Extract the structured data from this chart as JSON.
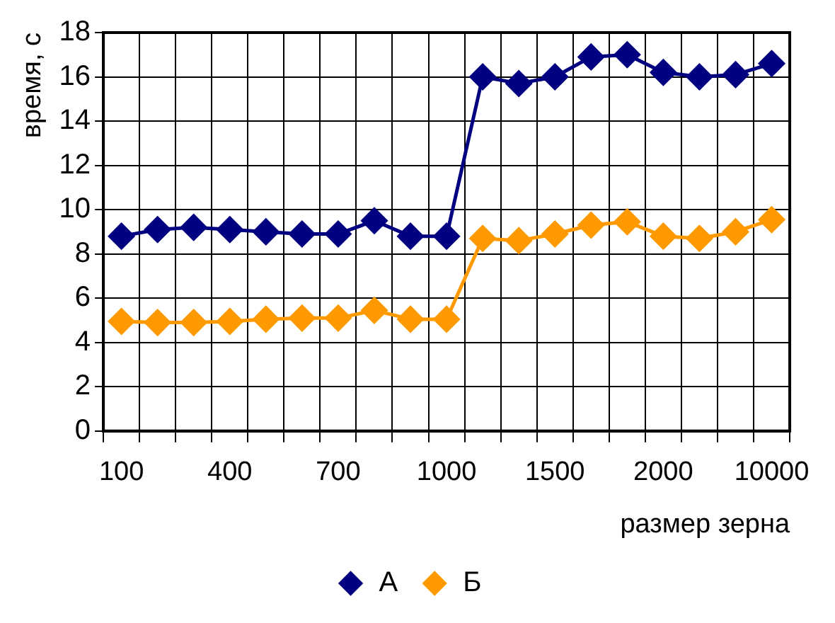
{
  "chart_data": {
    "type": "line",
    "xlabel": "размер зерна",
    "ylabel": "время, с",
    "categories": [
      "100",
      null,
      null,
      "400",
      null,
      null,
      "700",
      null,
      null,
      "1000",
      null,
      null,
      "1500",
      null,
      null,
      "2000",
      null,
      null,
      "10000"
    ],
    "series": [
      {
        "name": "А",
        "color": "#000080",
        "values": [
          8.8,
          9.1,
          9.2,
          9.1,
          9.0,
          8.9,
          8.9,
          9.5,
          8.8,
          8.8,
          16.0,
          15.7,
          16.0,
          16.9,
          17.0,
          16.2,
          16.0,
          16.1,
          16.6
        ]
      },
      {
        "name": "Б",
        "color": "#ff9900",
        "values": [
          4.95,
          4.9,
          4.9,
          4.95,
          5.05,
          5.1,
          5.1,
          5.45,
          5.05,
          5.05,
          8.7,
          8.6,
          8.9,
          9.3,
          9.45,
          8.8,
          8.7,
          9.0,
          9.55
        ]
      }
    ],
    "ylim": [
      0,
      18
    ],
    "yticks": [
      0,
      2,
      4,
      6,
      8,
      10,
      12,
      14,
      16,
      18
    ],
    "grid": true,
    "legend": "bottom",
    "marker": "diamond",
    "line_style": "solid"
  }
}
